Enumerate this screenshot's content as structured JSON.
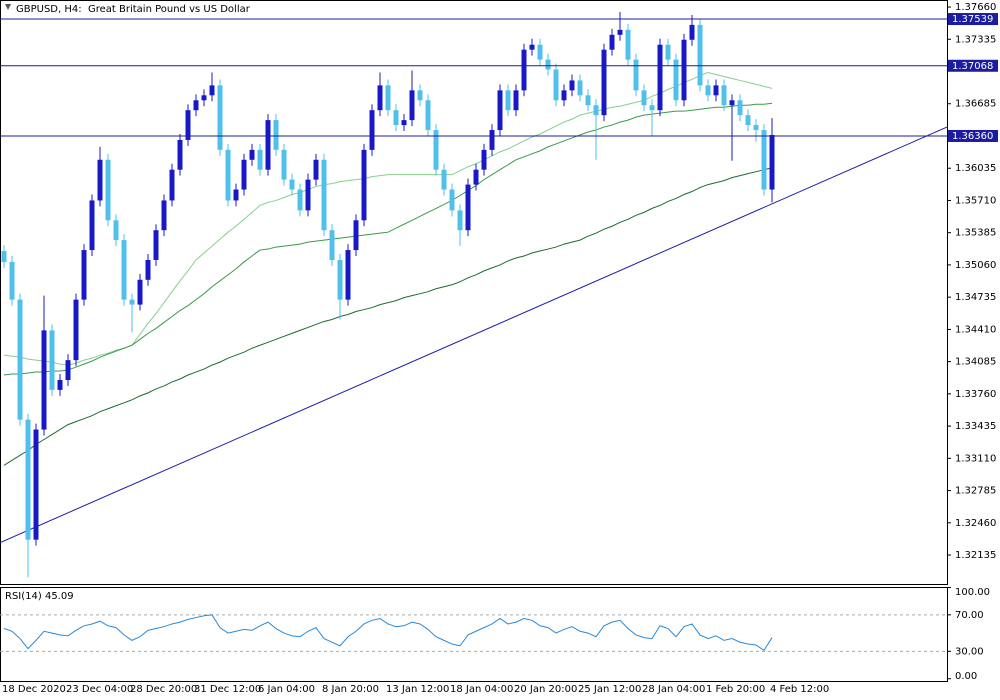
{
  "chart_data": [
    {
      "type": "candlestick",
      "title": "GBPUSD, H4:  Great Britain Pound vs US Dollar",
      "categories": [
        "18 Dec 2020",
        null,
        null,
        null,
        null,
        null,
        null,
        null,
        "23 Dec 04:00",
        null,
        null,
        null,
        null,
        null,
        null,
        null,
        "28 Dec 20:00",
        null,
        null,
        null,
        null,
        null,
        null,
        null,
        "31 Dec 12:00",
        null,
        null,
        null,
        null,
        null,
        null,
        null,
        "6 Jan 04:00",
        null,
        null,
        null,
        null,
        null,
        null,
        null,
        "8 Jan 20:00",
        null,
        null,
        null,
        null,
        null,
        null,
        null,
        "13 Jan 12:00",
        null,
        null,
        null,
        null,
        null,
        null,
        null,
        "18 Jan 04:00",
        null,
        null,
        null,
        null,
        null,
        null,
        null,
        "20 Jan 20:00",
        null,
        null,
        null,
        null,
        null,
        null,
        null,
        "25 Jan 12:00",
        null,
        null,
        null,
        null,
        null,
        null,
        null,
        "28 Jan 04:00",
        null,
        null,
        null,
        null,
        null,
        null,
        null,
        "1 Feb 20:00",
        null,
        null,
        null,
        null,
        null,
        null,
        null,
        "4 Feb 12:00"
      ],
      "open": [
        1.352,
        1.3509,
        1.3471,
        1.335,
        1.3229,
        1.334,
        1.344,
        1.338,
        1.339,
        1.341,
        1.3471,
        1.3521,
        1.3571,
        1.3612,
        1.3551,
        1.3531,
        1.3471,
        1.3466,
        1.3491,
        1.3511,
        1.3541,
        1.3571,
        1.3602,
        1.3632,
        1.3662,
        1.3672,
        1.3677,
        1.3687,
        1.3622,
        1.3571,
        1.3582,
        1.3612,
        1.3622,
        1.3602,
        1.3652,
        1.3622,
        1.3592,
        1.3582,
        1.3561,
        1.3592,
        1.3612,
        1.3541,
        1.3511,
        1.3471,
        1.3521,
        1.3551,
        1.3622,
        1.3662,
        1.3687,
        1.3662,
        1.3647,
        1.3652,
        1.3682,
        1.3672,
        1.3642,
        1.3602,
        1.3582,
        1.3561,
        1.3541,
        1.3587,
        1.3602,
        1.3622,
        1.3642,
        1.3682,
        1.3662,
        1.3682,
        1.3723,
        1.3728,
        1.3713,
        1.3703,
        1.3672,
        1.3682,
        1.3692,
        1.3677,
        1.3667,
        1.3657,
        1.3723,
        1.3738,
        1.3743,
        1.3713,
        1.3682,
        1.3667,
        1.3662,
        1.3728,
        1.3713,
        1.3672,
        1.3733,
        1.3748,
        1.3687,
        1.3677,
        1.3687,
        1.3667,
        1.3672,
        1.3657,
        1.3647,
        1.3642,
        1.3582
      ],
      "high": [
        1.3526,
        1.3515,
        1.3477,
        1.3356,
        1.3346,
        1.3475,
        1.3446,
        1.3396,
        1.3416,
        1.3477,
        1.3527,
        1.3577,
        1.3625,
        1.3618,
        1.3557,
        1.3537,
        1.3477,
        1.3497,
        1.3517,
        1.3547,
        1.3577,
        1.3608,
        1.3638,
        1.3668,
        1.3678,
        1.3683,
        1.37,
        1.3693,
        1.3628,
        1.3588,
        1.3618,
        1.3628,
        1.3628,
        1.3658,
        1.3658,
        1.3628,
        1.3598,
        1.3588,
        1.3598,
        1.3618,
        1.3618,
        1.3547,
        1.3517,
        1.3527,
        1.3557,
        1.3628,
        1.3668,
        1.37,
        1.3693,
        1.3668,
        1.3658,
        1.3702,
        1.3688,
        1.3678,
        1.3648,
        1.3608,
        1.3588,
        1.3567,
        1.3593,
        1.3608,
        1.3628,
        1.3648,
        1.3688,
        1.3688,
        1.3688,
        1.3729,
        1.3734,
        1.3734,
        1.3719,
        1.3709,
        1.3688,
        1.3698,
        1.3698,
        1.3683,
        1.3673,
        1.3729,
        1.3744,
        1.3761,
        1.3749,
        1.3719,
        1.3688,
        1.3673,
        1.3734,
        1.3734,
        1.3719,
        1.3739,
        1.3758,
        1.3754,
        1.3693,
        1.3693,
        1.3693,
        1.3678,
        1.3678,
        1.3663,
        1.3653,
        1.3648,
        1.3654
      ],
      "low": [
        1.3503,
        1.3465,
        1.3344,
        1.3191,
        1.3223,
        1.3334,
        1.3374,
        1.3374,
        1.3384,
        1.3404,
        1.3465,
        1.3515,
        1.3565,
        1.3545,
        1.3525,
        1.3465,
        1.3438,
        1.346,
        1.3485,
        1.3505,
        1.3535,
        1.3565,
        1.3596,
        1.3626,
        1.3656,
        1.3666,
        1.3671,
        1.3616,
        1.3565,
        1.3565,
        1.3576,
        1.3606,
        1.3596,
        1.3596,
        1.3616,
        1.3586,
        1.3576,
        1.3555,
        1.3555,
        1.3586,
        1.3535,
        1.3505,
        1.3451,
        1.3465,
        1.3515,
        1.3545,
        1.3616,
        1.3656,
        1.3656,
        1.3641,
        1.3641,
        1.3646,
        1.3666,
        1.3636,
        1.3596,
        1.3576,
        1.3555,
        1.3525,
        1.3535,
        1.3581,
        1.3596,
        1.3616,
        1.3636,
        1.3656,
        1.3656,
        1.3676,
        1.3717,
        1.3707,
        1.3697,
        1.3666,
        1.3666,
        1.3676,
        1.3671,
        1.3661,
        1.3612,
        1.3651,
        1.3717,
        1.3732,
        1.3707,
        1.3676,
        1.3661,
        1.3636,
        1.3656,
        1.3707,
        1.3666,
        1.3666,
        1.3727,
        1.3681,
        1.3671,
        1.3671,
        1.3661,
        1.3611,
        1.3651,
        1.3641,
        1.363,
        1.3576,
        1.3569
      ],
      "close": [
        1.3509,
        1.3471,
        1.335,
        1.3229,
        1.334,
        1.344,
        1.338,
        1.339,
        1.341,
        1.3471,
        1.3521,
        1.3571,
        1.3612,
        1.3551,
        1.3531,
        1.3471,
        1.3466,
        1.3491,
        1.3511,
        1.3541,
        1.3571,
        1.3602,
        1.3632,
        1.3662,
        1.3672,
        1.3677,
        1.3687,
        1.3622,
        1.3571,
        1.3582,
        1.3612,
        1.3622,
        1.3602,
        1.3652,
        1.3622,
        1.3592,
        1.3582,
        1.3561,
        1.3592,
        1.3612,
        1.3541,
        1.3511,
        1.3471,
        1.3521,
        1.3551,
        1.3622,
        1.3662,
        1.3687,
        1.3662,
        1.3647,
        1.3652,
        1.3682,
        1.3672,
        1.3642,
        1.3602,
        1.3582,
        1.3561,
        1.3541,
        1.3587,
        1.3602,
        1.3622,
        1.3642,
        1.3682,
        1.3662,
        1.3682,
        1.3723,
        1.3728,
        1.3713,
        1.3703,
        1.3672,
        1.3682,
        1.3692,
        1.3677,
        1.3667,
        1.3657,
        1.3723,
        1.3738,
        1.3743,
        1.3713,
        1.3682,
        1.3667,
        1.3662,
        1.3728,
        1.3713,
        1.3672,
        1.3733,
        1.3748,
        1.3687,
        1.3677,
        1.3687,
        1.3667,
        1.3672,
        1.3657,
        1.3647,
        1.3642,
        1.3582,
        1.3637
      ],
      "up_color": "#1818c8",
      "down_color": "#4fc0ec",
      "series": [
        {
          "color": "#86cf8e",
          "values": [
            1.3415,
            1.3414,
            1.3413,
            1.3411,
            1.341,
            1.3409,
            1.3408,
            1.3406,
            1.3405,
            1.3407,
            1.341,
            1.3412,
            1.3415,
            1.3417,
            1.342,
            1.3422,
            1.3425,
            1.3436,
            1.3447,
            1.3457,
            1.3468,
            1.3479,
            1.349,
            1.35,
            1.3511,
            1.3518,
            1.3525,
            1.3532,
            1.3539,
            1.3545,
            1.3552,
            1.3559,
            1.3566,
            1.3569,
            1.3571,
            1.3574,
            1.3577,
            1.3579,
            1.3582,
            1.3585,
            1.3587,
            1.3588,
            1.359,
            1.3591,
            1.3592,
            1.3593,
            1.3595,
            1.3596,
            1.3597,
            1.3597,
            1.3597,
            1.3597,
            1.3597,
            1.3597,
            1.3597,
            1.3597,
            1.3597,
            1.3601,
            1.3605,
            1.3608,
            1.3612,
            1.3616,
            1.362,
            1.3623,
            1.3627,
            1.3631,
            1.3635,
            1.3638,
            1.3642,
            1.3646,
            1.365,
            1.3653,
            1.3657,
            1.3659,
            1.3661,
            1.3663,
            1.3665,
            1.3666,
            1.3668,
            1.367,
            1.3672,
            1.3676,
            1.3679,
            1.3683,
            1.3686,
            1.369,
            1.3693,
            1.3697,
            1.37,
            1.3698,
            1.3696,
            1.3694,
            1.3692,
            1.369,
            1.3688,
            1.3686,
            1.3684
          ]
        },
        {
          "color": "#3a9a4a",
          "values": [
            1.3395,
            1.3396,
            1.3396,
            1.3397,
            1.3398,
            1.3398,
            1.3399,
            1.3399,
            1.34,
            1.3403,
            1.3406,
            1.3409,
            1.3413,
            1.3416,
            1.3419,
            1.3422,
            1.3425,
            1.3431,
            1.3437,
            1.3442,
            1.3448,
            1.3454,
            1.346,
            1.3465,
            1.3471,
            1.3477,
            1.3484,
            1.349,
            1.3496,
            1.3502,
            1.3509,
            1.3515,
            1.3521,
            1.3522,
            1.3524,
            1.3525,
            1.3526,
            1.3527,
            1.3529,
            1.353,
            1.3531,
            1.3532,
            1.3533,
            1.3534,
            1.3535,
            1.3536,
            1.3537,
            1.3538,
            1.3539,
            1.3543,
            1.3547,
            1.3551,
            1.3555,
            1.3559,
            1.3563,
            1.3567,
            1.3571,
            1.3576,
            1.3581,
            1.3586,
            1.3592,
            1.3597,
            1.3602,
            1.3607,
            1.3612,
            1.3615,
            1.3618,
            1.3621,
            1.3625,
            1.3628,
            1.3631,
            1.3634,
            1.3637,
            1.364,
            1.3642,
            1.3645,
            1.3647,
            1.365,
            1.3652,
            1.3655,
            1.3657,
            1.3658,
            1.3659,
            1.366,
            1.3661,
            1.3661,
            1.3662,
            1.3663,
            1.3664,
            1.3665,
            1.3665,
            1.3666,
            1.3667,
            1.3667,
            1.3668,
            1.3668,
            1.3669
          ]
        },
        {
          "color": "#1f6b30",
          "values": [
            1.3304,
            1.3309,
            1.3314,
            1.3319,
            1.3325,
            1.333,
            1.3335,
            1.334,
            1.3345,
            1.3348,
            1.3351,
            1.3354,
            1.3358,
            1.3361,
            1.3364,
            1.3367,
            1.337,
            1.3374,
            1.3377,
            1.3381,
            1.3384,
            1.3388,
            1.3391,
            1.3395,
            1.3398,
            1.3401,
            1.3405,
            1.3408,
            1.3412,
            1.3415,
            1.3418,
            1.3422,
            1.3425,
            1.3428,
            1.3431,
            1.3434,
            1.3437,
            1.344,
            1.3443,
            1.3446,
            1.3449,
            1.3451,
            1.3454,
            1.3456,
            1.3459,
            1.3461,
            1.3463,
            1.3466,
            1.3468,
            1.347,
            1.3473,
            1.3475,
            1.3477,
            1.3479,
            1.3482,
            1.3484,
            1.3486,
            1.3489,
            1.3493,
            1.3496,
            1.35,
            1.3503,
            1.3506,
            1.351,
            1.3513,
            1.3515,
            1.3518,
            1.352,
            1.3522,
            1.3524,
            1.3527,
            1.3529,
            1.3531,
            1.3535,
            1.3538,
            1.3542,
            1.3545,
            1.3549,
            1.3552,
            1.3556,
            1.3559,
            1.3563,
            1.3566,
            1.357,
            1.3573,
            1.3577,
            1.358,
            1.3584,
            1.3587,
            1.3589,
            1.3591,
            1.3594,
            1.3596,
            1.3598,
            1.36,
            1.3602,
            1.3604
          ]
        }
      ],
      "levels": [
        1.37539,
        {
          "value": 1.37068,
          "label": "1.37068"
        },
        {
          "value": 1.3636,
          "label": "1.36360"
        }
      ],
      "level_color": "#1c1ca0",
      "trendline": [
        1.3226,
        1.3645
      ],
      "trendline_color": "#1c1cb0",
      "ylim": [
        1.31843,
        1.37731
      ],
      "yticks": [
        {
          "value": 1.3766,
          "label": "1.37660"
        },
        1.37335,
        1.36685,
        1.36035,
        {
          "value": 1.3571,
          "label": "1.35710"
        },
        1.35385,
        {
          "value": 1.3506,
          "label": "1.35060"
        },
        1.34735,
        {
          "value": 1.3441,
          "label": "1.34410"
        },
        1.34085,
        {
          "value": 1.3376,
          "label": "1.33760"
        },
        1.33435,
        {
          "value": 1.3311,
          "label": "1.33110"
        },
        1.32785,
        {
          "value": 1.3246,
          "label": "1.32460"
        },
        1.32135
      ]
    },
    {
      "type": "line",
      "title": "RSI(14) 45.09",
      "color": "#2a8ad8",
      "values": [
        55,
        52,
        44,
        33,
        42,
        52,
        50,
        48,
        47,
        53,
        58,
        60,
        63,
        58,
        56,
        48,
        42,
        46,
        53,
        55,
        57,
        60,
        62,
        65,
        67,
        69,
        70,
        56,
        50,
        52,
        54,
        53,
        58,
        62,
        55,
        50,
        47,
        46,
        52,
        56,
        44,
        40,
        36,
        46,
        52,
        60,
        64,
        66,
        60,
        57,
        58,
        62,
        60,
        54,
        46,
        42,
        38,
        36,
        48,
        52,
        56,
        60,
        66,
        60,
        62,
        66,
        64,
        58,
        56,
        50,
        54,
        57,
        52,
        50,
        46,
        58,
        62,
        64,
        55,
        48,
        45,
        44,
        58,
        55,
        46,
        57,
        60,
        48,
        44,
        47,
        42,
        44,
        40,
        38,
        37,
        31,
        45.09
      ],
      "ylim": [
        -2.5,
        100.5
      ],
      "yticks": [
        {
          "value": 100,
          "label": "100.00"
        },
        {
          "value": 70,
          "label": "70.00"
        },
        {
          "value": 30,
          "label": "30.00"
        },
        {
          "value": 0,
          "label": "0.00"
        }
      ],
      "dashed_levels": [
        70,
        30
      ]
    }
  ]
}
